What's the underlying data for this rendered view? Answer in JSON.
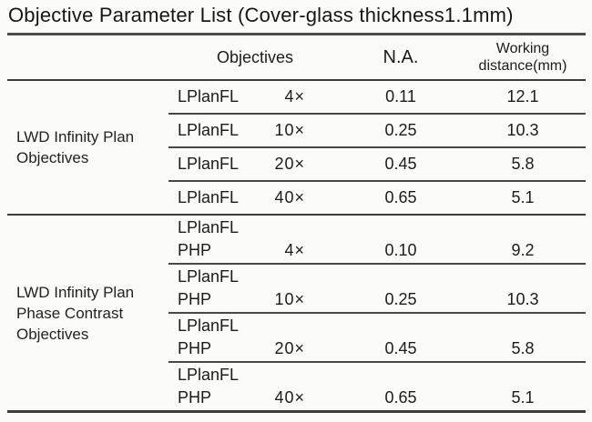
{
  "title": "Objective Parameter List (Cover-glass thickness1.1mm)",
  "table": {
    "headers": {
      "objectives": "Objectives",
      "na": "N.A.",
      "wd_line1": "Working",
      "wd_line2": "distance(mm)"
    },
    "groups": [
      {
        "label_lines": [
          "LWD Infinity Plan",
          "Objectives"
        ],
        "rows": [
          {
            "name": "LPlanFL",
            "mag": "4×",
            "na": "0.11",
            "wd": "12.1"
          },
          {
            "name": "LPlanFL",
            "mag": "10×",
            "na": "0.25",
            "wd": "10.3"
          },
          {
            "name": "LPlanFL",
            "mag": "20×",
            "na": "0.45",
            "wd": "5.8"
          },
          {
            "name": "LPlanFL",
            "mag": "40×",
            "na": "0.65",
            "wd": "5.1"
          }
        ]
      },
      {
        "label_lines": [
          "LWD Infinity Plan",
          "Phase Contrast",
          "Objectives"
        ],
        "rows": [
          {
            "name": "LPlanFL",
            "name2": "PHP",
            "mag": "4×",
            "na": "0.10",
            "wd": "9.2"
          },
          {
            "name": "LPlanFL",
            "name2": "PHP",
            "mag": "10×",
            "na": "0.25",
            "wd": "10.3"
          },
          {
            "name": "LPlanFL",
            "name2": "PHP",
            "mag": "20×",
            "na": "0.45",
            "wd": "5.8"
          },
          {
            "name": "LPlanFL",
            "name2": "PHP",
            "mag": "40×",
            "na": "0.65",
            "wd": "5.1"
          }
        ]
      }
    ]
  },
  "colors": {
    "text": "#1c1c1c",
    "rule": "#3c3c3c",
    "background": "#fbfbfa"
  }
}
